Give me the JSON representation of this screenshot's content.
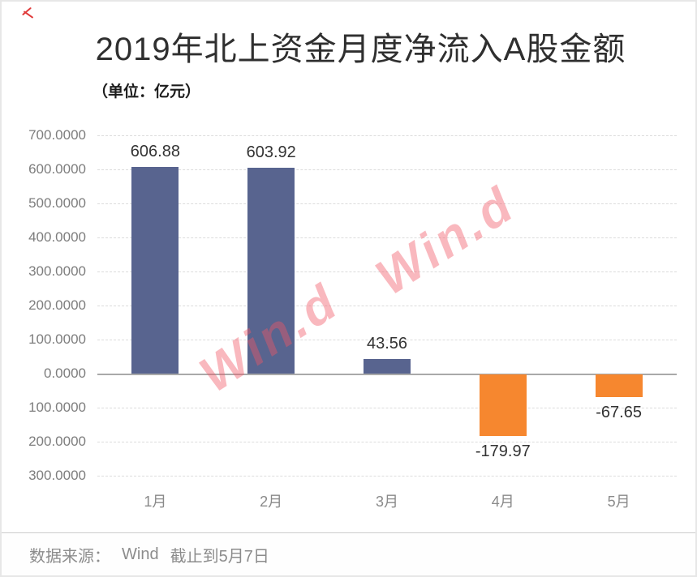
{
  "page": {
    "footer": {
      "source_label": "数据来源：",
      "source_value": "Wind",
      "date_note": "截止到5月7日"
    },
    "icons": {
      "corner_mark": "red-scribble-icon"
    }
  },
  "colors": {
    "positive_bar": "#58648f",
    "negative_bar": "#f6872f",
    "watermark": "rgba(240,86,100,0.42)",
    "watermark_solid": "#e03a3a",
    "grid": "#dcdcdc",
    "axis_text": "#7d7d7d"
  },
  "chart_data": {
    "type": "bar",
    "title": "2019年北上资金月度净流入A股金额",
    "unit": "（单位：亿元）",
    "categories": [
      "1月",
      "2月",
      "3月",
      "4月",
      "5月"
    ],
    "values": [
      606.88,
      603.92,
      43.56,
      -179.97,
      -67.65
    ],
    "value_labels": [
      "606.88",
      "603.92",
      "43.56",
      "-179.97",
      "-67.65"
    ],
    "ylim": [
      -300,
      700
    ],
    "ytick_interval": 100,
    "ytick_labels": [
      "700.0000",
      "600.0000",
      "500.0000",
      "400.0000",
      "300.0000",
      "200.0000",
      "100.0000",
      "0.0000",
      "100.0000",
      "200.0000",
      "300.0000"
    ],
    "grid": "dashed-horizontal",
    "legend": "none",
    "watermark": "Win.d",
    "source": "Wind"
  }
}
